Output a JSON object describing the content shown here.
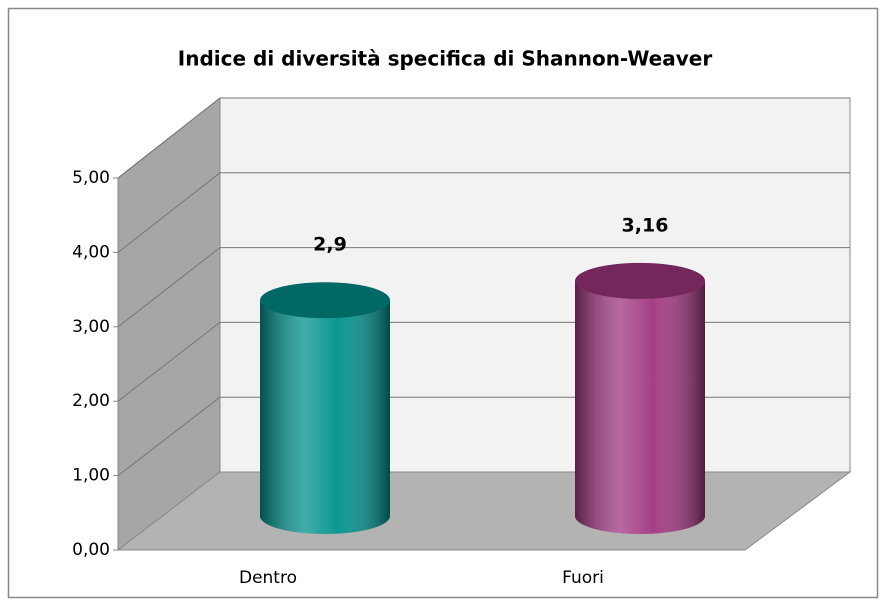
{
  "chart_data": {
    "type": "bar3d",
    "title": "Indice di diversità specifica di Shannon-Weaver",
    "categories": [
      "Dentro",
      "Fuori"
    ],
    "values": [
      2.9,
      3.16
    ],
    "value_labels": [
      "2,9",
      "3,16"
    ],
    "colors": [
      "#00918c",
      "#a0367f"
    ],
    "ylim": [
      0,
      5
    ],
    "yticks": [
      {
        "value": 0,
        "label": "0,00"
      },
      {
        "value": 1,
        "label": "1,00"
      },
      {
        "value": 2,
        "label": "2,00"
      },
      {
        "value": 3,
        "label": "3,00"
      },
      {
        "value": 4,
        "label": "4,00"
      },
      {
        "value": 5,
        "label": "5,00"
      }
    ],
    "grid": true
  }
}
